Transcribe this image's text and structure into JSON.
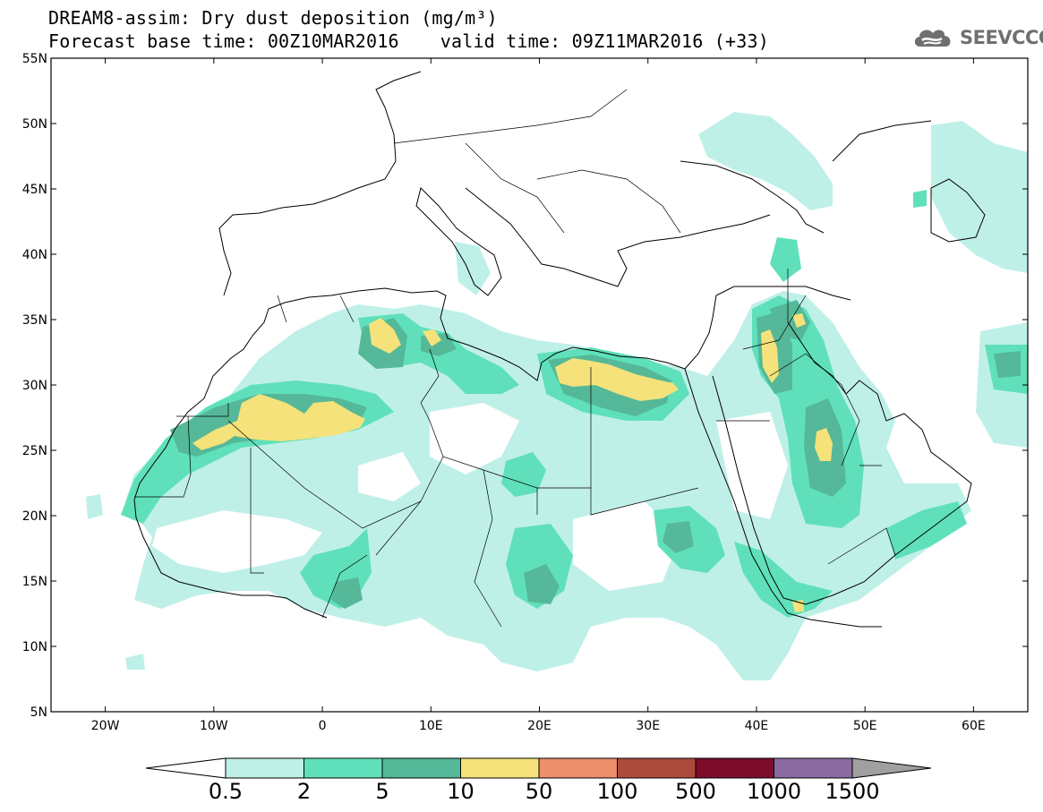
{
  "title": {
    "line1": "DREAM8-assim: Dry dust deposition (mg/m³)",
    "base_time": "Forecast base time: 00Z10MAR2016",
    "valid_time": "valid time: 09Z11MAR2016 (+33)"
  },
  "logo": {
    "text": "SEEVCCC",
    "icon": "cloud-icon"
  },
  "map": {
    "projection": "lat-lon",
    "lon_range": [
      -25,
      65
    ],
    "lat_range": [
      5,
      55
    ],
    "lat_ticks": [
      "5N",
      "10N",
      "15N",
      "20N",
      "25N",
      "30N",
      "35N",
      "40N",
      "45N",
      "50N",
      "55N"
    ],
    "lon_ticks": [
      "20W",
      "10W",
      "0",
      "10E",
      "20E",
      "30E",
      "40E",
      "50E",
      "60E"
    ]
  },
  "colorbar": {
    "labels": [
      "0.5",
      "2",
      "5",
      "10",
      "50",
      "100",
      "500",
      "1000",
      "1500"
    ],
    "colors": [
      "#bff0e8",
      "#5fe0bb",
      "#55b898",
      "#f5e27a",
      "#ec8f6a",
      "#ad4a3e",
      "#7c0d2a",
      "#8a6aa0"
    ],
    "under_color": "#ffffff",
    "over_color": "#a0a0a0"
  }
}
